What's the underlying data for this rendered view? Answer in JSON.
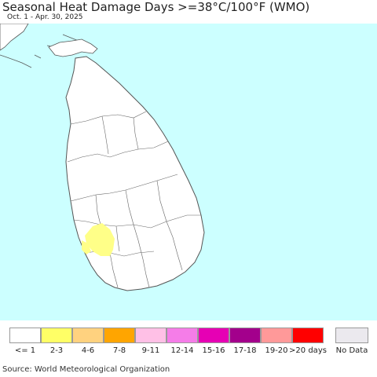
{
  "title": "Seasonal Heat Damage Days >=38°C/100°F (WMO)",
  "subtitle": "Oct. 1 - Apr. 30, 2025",
  "source": "Source: World Meteorological Organization",
  "colors": {
    "ocean": "#ccffff",
    "land": "#ffffff",
    "boundary": "#555555",
    "highlight": "#ffff88"
  },
  "legend": [
    {
      "label": "<= 1",
      "color": "#ffffff"
    },
    {
      "label": "2-3",
      "color": "#ffff66"
    },
    {
      "label": "4-6",
      "color": "#ffd27f"
    },
    {
      "label": "7-8",
      "color": "#ffa500"
    },
    {
      "label": "9-11",
      "color": "#ffc0e6"
    },
    {
      "label": "12-14",
      "color": "#f57de8"
    },
    {
      "label": "15-16",
      "color": "#e600b4"
    },
    {
      "label": "17-18",
      "color": "#a3008c"
    },
    {
      "label": "19-20",
      "color": "#ff9999"
    },
    {
      "label": ">20 days",
      "color": "#ff0000"
    }
  ],
  "no_data": {
    "label": "No Data",
    "color": "#ebe9ee"
  }
}
